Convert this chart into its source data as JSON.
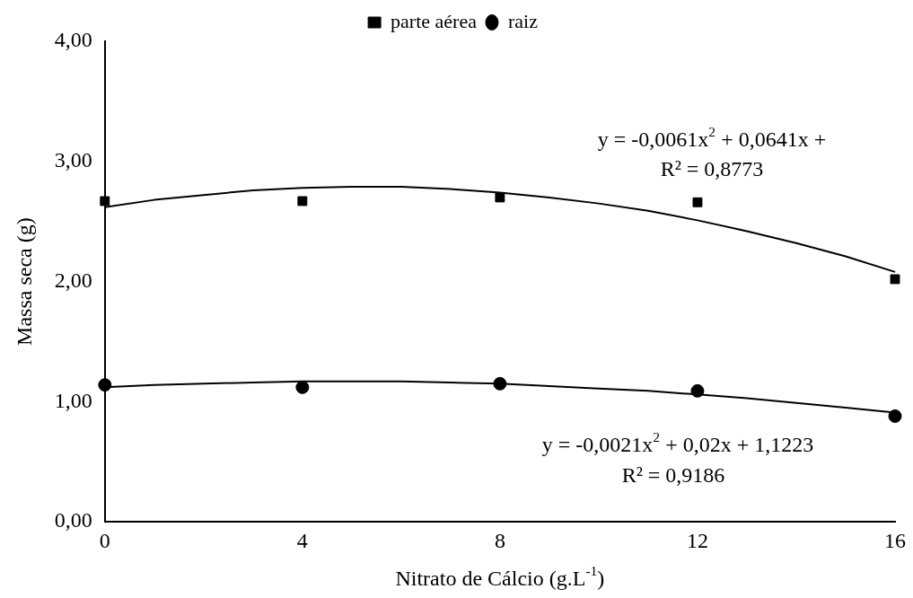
{
  "chart_data": {
    "type": "scatter",
    "xlabel": "Nitrato de Cálcio (g.L$^{-1}$)",
    "ylabel": "Massa seca (g)",
    "x": [
      0,
      4,
      8,
      12,
      16
    ],
    "series": [
      {
        "name": "parte aérea",
        "color": "#000000",
        "marker": "square",
        "values": [
          2.67,
          2.67,
          2.7,
          2.66,
          2.02
        ]
      },
      {
        "name": "raiz",
        "color": "#000000",
        "marker": "circle",
        "values": [
          1.14,
          1.12,
          1.15,
          1.09,
          0.88
        ]
      },
      {
        "type": "line",
        "color": "#000000",
        "line_style": "solid",
        "marker": "none",
        "x": [
          0,
          1,
          2,
          3,
          4,
          5,
          6,
          7,
          8,
          9,
          10,
          11,
          12,
          13,
          14,
          15,
          16
        ],
        "values": [
          2.62,
          2.68,
          2.72,
          2.76,
          2.78,
          2.79,
          2.79,
          2.77,
          2.74,
          2.7,
          2.65,
          2.59,
          2.51,
          2.42,
          2.32,
          2.21,
          2.08
        ]
      },
      {
        "type": "line",
        "color": "#000000",
        "line_style": "solid",
        "marker": "none",
        "x": [
          0,
          1,
          2,
          3,
          4,
          5,
          6,
          7,
          8,
          9,
          10,
          11,
          12,
          13,
          14,
          15,
          16
        ],
        "values": [
          1.12,
          1.14,
          1.15,
          1.16,
          1.17,
          1.17,
          1.17,
          1.16,
          1.15,
          1.13,
          1.11,
          1.09,
          1.06,
          1.03,
          0.99,
          0.95,
          0.91
        ]
      }
    ],
    "xlim": [
      0,
      16
    ],
    "xticks": [
      0,
      4,
      8,
      12,
      16
    ],
    "ylim": [
      0,
      4
    ],
    "yticks": [
      {
        "value": 0,
        "label": "0,00"
      },
      {
        "value": 1,
        "label": "1,00"
      },
      {
        "value": 2,
        "label": "2,00"
      },
      {
        "value": 3,
        "label": "3,00"
      },
      {
        "value": 4,
        "label": "4,00"
      }
    ],
    "grid": false,
    "legend": "top",
    "annotations": [
      "y = -0,0061x$^{2}$ + 0,0641x +",
      "R² = 0,8773",
      "y = -0,0021x$^{2}$ + 0,02x + 1,1223",
      "R² = 0,9186"
    ]
  }
}
